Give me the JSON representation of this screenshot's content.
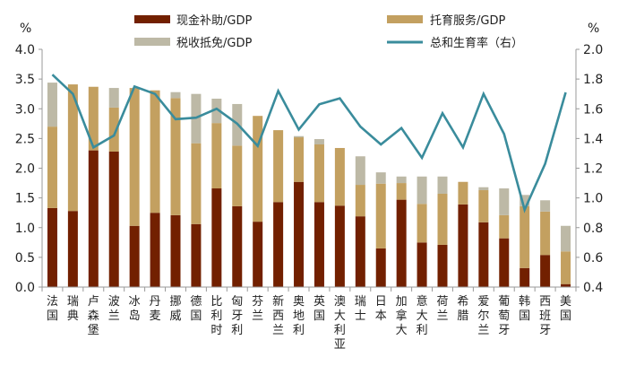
{
  "chart_data": {
    "type": "bar",
    "stacked": true,
    "left_unit": "%",
    "right_unit": "%",
    "ylim_left": [
      0,
      4.0
    ],
    "ylim_right": [
      0.4,
      2.0
    ],
    "left_ticks": [
      "0.0",
      "0.5",
      "1.0",
      "1.5",
      "2.0",
      "2.5",
      "3.0",
      "3.5",
      "4.0"
    ],
    "right_ticks": [
      "0.4",
      "0.6",
      "0.8",
      "1.0",
      "1.2",
      "1.4",
      "1.6",
      "1.8",
      "2.0"
    ],
    "grid": false,
    "legend_placement": "top",
    "categories": [
      "法国",
      "瑞典",
      "卢森堡",
      "波兰",
      "冰岛",
      "丹麦",
      "挪威",
      "德国",
      "比利时",
      "匈牙利",
      "芬兰",
      "新西兰",
      "奥地利",
      "英国",
      "澳大利亚",
      "瑞士",
      "日本",
      "加拿大",
      "意大利",
      "荷兰",
      "希腊",
      "爱尔兰",
      "葡萄牙",
      "韩国",
      "西班牙",
      "美国"
    ],
    "series": [
      {
        "name": "现金补助/GDP",
        "axis": "left",
        "kind": "bar",
        "color": "#722000",
        "values": [
          1.33,
          1.28,
          2.3,
          2.28,
          1.03,
          1.25,
          1.21,
          1.06,
          1.66,
          1.36,
          1.1,
          1.43,
          1.77,
          1.43,
          1.37,
          1.19,
          0.65,
          1.47,
          0.75,
          0.71,
          1.39,
          1.09,
          0.82,
          0.32,
          0.54,
          0.05
        ]
      },
      {
        "name": "托育服务/GDP",
        "axis": "left",
        "kind": "bar",
        "color": "#C3A060",
        "values": [
          1.37,
          2.13,
          1.07,
          0.74,
          2.32,
          2.06,
          1.97,
          1.36,
          1.1,
          1.02,
          1.78,
          1.21,
          0.75,
          0.97,
          0.97,
          0.53,
          1.09,
          0.28,
          0.65,
          0.86,
          0.38,
          0.54,
          0.39,
          1.04,
          0.73,
          0.55
        ]
      },
      {
        "name": "税收抵免/GDP",
        "axis": "left",
        "kind": "bar",
        "color": "#BDB9A6",
        "values": [
          0.74,
          0,
          0,
          0.33,
          0,
          0,
          0.1,
          0.83,
          0.41,
          0.7,
          0,
          0,
          0.02,
          0.09,
          0,
          0.48,
          0.19,
          0.11,
          0.46,
          0.29,
          0,
          0.05,
          0.45,
          0.19,
          0.19,
          0.43
        ]
      },
      {
        "name": "总和生育率（右）",
        "axis": "right",
        "kind": "line",
        "color": "#3A8C9C",
        "values": [
          1.83,
          1.7,
          1.34,
          1.42,
          1.75,
          1.7,
          1.53,
          1.54,
          1.6,
          1.5,
          1.35,
          1.72,
          1.46,
          1.63,
          1.67,
          1.48,
          1.36,
          1.47,
          1.27,
          1.57,
          1.34,
          1.7,
          1.43,
          0.92,
          1.23,
          1.71
        ]
      }
    ]
  }
}
